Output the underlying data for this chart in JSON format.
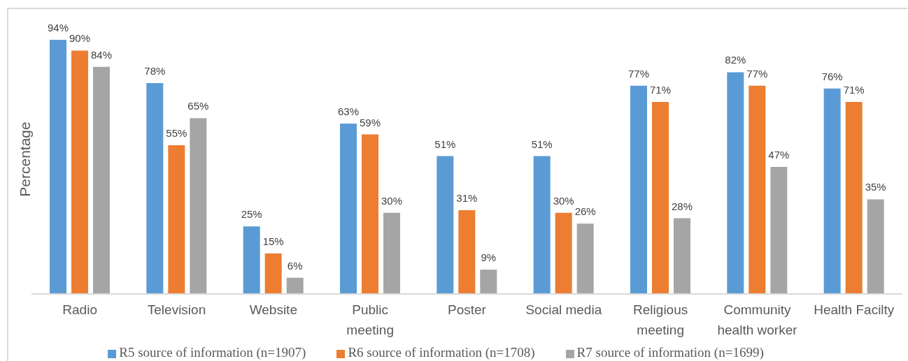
{
  "chart_data": {
    "type": "bar",
    "ylabel": "Percentage",
    "categories": [
      "Radio",
      "Television",
      "Website",
      "Public meeting",
      "Poster",
      "Social media",
      "Religious meeting",
      "Community health worker",
      "Health Facilty"
    ],
    "series": [
      {
        "name": "R5 source of information (n=1907)",
        "color": "#5b9bd5",
        "values": [
          94,
          78,
          25,
          63,
          51,
          51,
          77,
          82,
          76
        ],
        "value_labels": [
          "94%",
          "78%",
          "25%",
          "63%",
          "51%",
          "51%",
          "77%",
          "82%",
          "76%"
        ]
      },
      {
        "name": "R6 source of information (n=1708)",
        "color": "#ed7d31",
        "values": [
          90,
          55,
          15,
          59,
          31,
          30,
          71,
          77,
          71
        ],
        "value_labels": [
          "90%",
          "55%",
          "15%",
          "59%",
          "31%",
          "30%",
          "71%",
          "77%",
          "71%"
        ]
      },
      {
        "name": "R7 source of information (n=1699)",
        "color": "#a5a5a5",
        "values": [
          84,
          65,
          6,
          30,
          9,
          26,
          28,
          47,
          35
        ],
        "value_labels": [
          "84%",
          "65%",
          "6%",
          "30%",
          "9%",
          "26%",
          "28%",
          "47%",
          "35%"
        ]
      }
    ],
    "tick_labels": "x",
    "legend": "bottom"
  }
}
